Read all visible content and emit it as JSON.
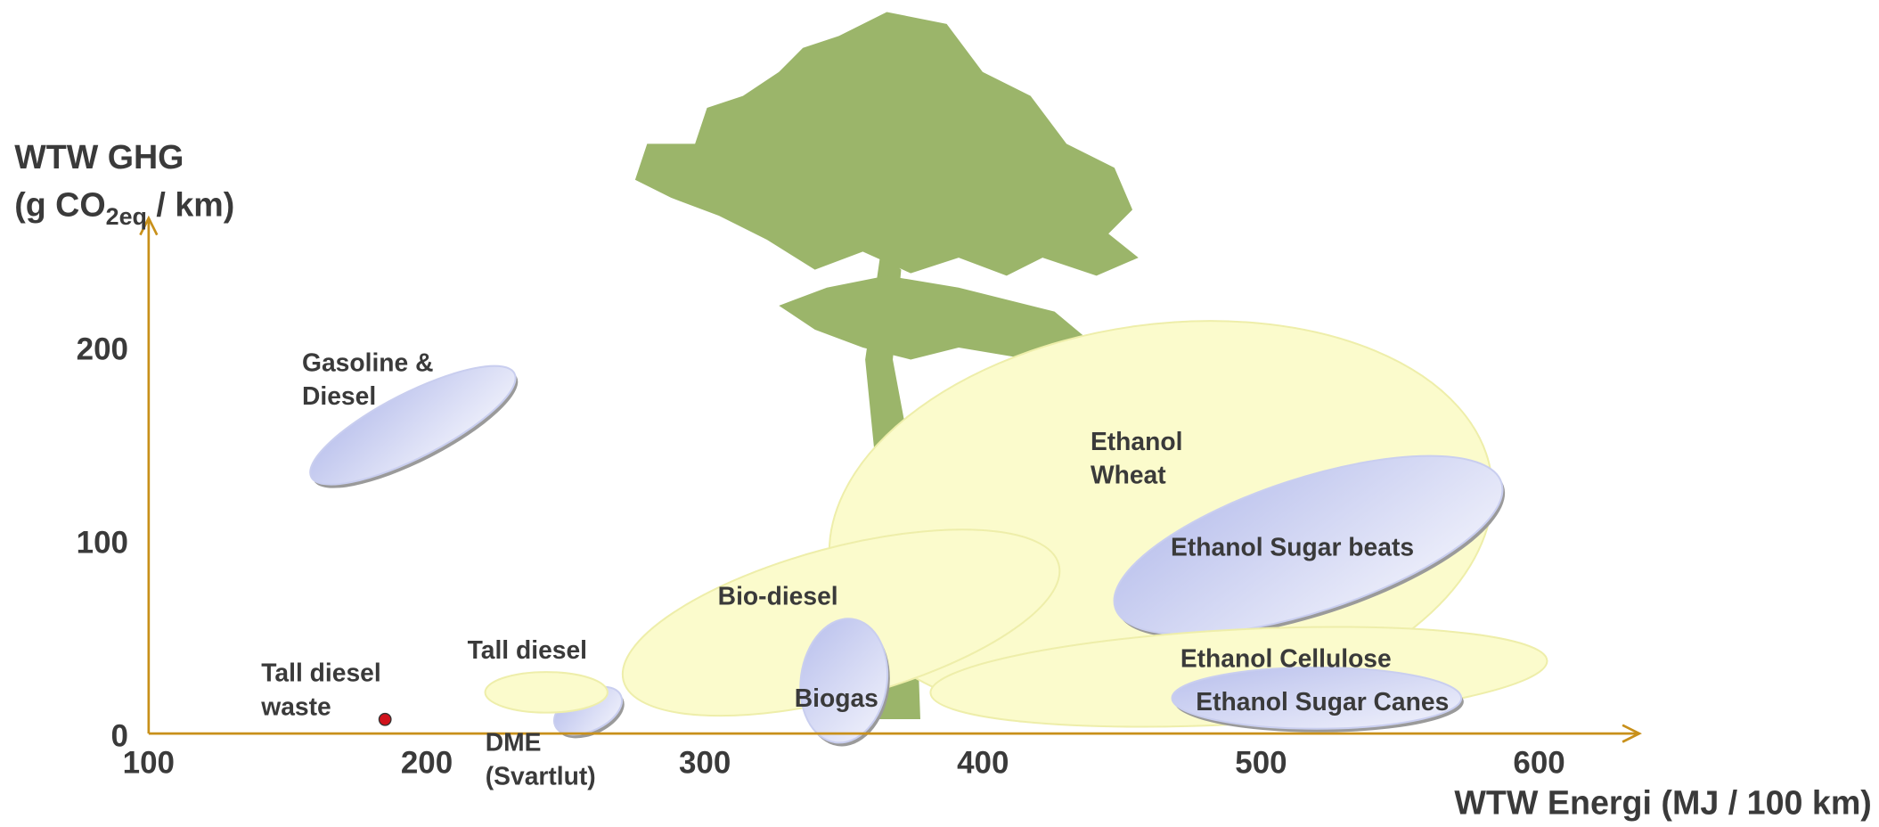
{
  "chart_data": {
    "type": "ellipse",
    "y_label_line1": "WTW GHG",
    "y_label_line2": {
      "before": "(g CO",
      "subscript": "2eq",
      "after": " / km)"
    },
    "x_label": "WTW Energi (MJ / 100 km)",
    "xlim": [
      100,
      636
    ],
    "ylim": [
      0,
      270
    ],
    "xticks": [
      100,
      200,
      300,
      400,
      500,
      600
    ],
    "yticks": [
      0,
      100,
      200
    ],
    "axis_color": "#c8901a",
    "ellipses": [
      {
        "label": [
          "Ethanol",
          "Wheat"
        ],
        "x": 464,
        "y": 113,
        "rx": 120,
        "ry": 71,
        "angle": -8,
        "color": "#fbfbcc"
      },
      {
        "label": [
          "Ethanol Sugar beats"
        ],
        "x": 517,
        "y": 101,
        "rx": 73,
        "ry": 24,
        "angle": -18,
        "color": "#c9ceef"
      },
      {
        "label": [
          "Bio-diesel"
        ],
        "x": 349,
        "y": 61,
        "rx": 81,
        "ry": 27,
        "angle": -15,
        "color": "#fbfbcc"
      },
      {
        "label": [
          "Ethanol Cellulose"
        ],
        "x": 492,
        "y": 33,
        "rx": 111,
        "ry": 17,
        "angle": -3,
        "color": "#fbfbcc"
      },
      {
        "label": [
          "Ethanol Sugar Canes"
        ],
        "x": 520,
        "y": 22,
        "rx": 52,
        "ry": 11,
        "angle": 0,
        "color": "#c9ceef"
      },
      {
        "label": [
          "Biogas"
        ],
        "x": 350,
        "y": 31,
        "rx": 15.5,
        "ry": 22.4,
        "angle": 8,
        "color": "#c9ceef"
      },
      {
        "label": [
          "DME",
          "(Svartlut)"
        ],
        "x": 258,
        "y": 15.5,
        "rx": 13,
        "ry": 7.3,
        "angle": -25,
        "color": "#c9ceef"
      },
      {
        "label": [
          "Tall diesel"
        ],
        "x": 243,
        "y": 25,
        "rx": 22,
        "ry": 7.3,
        "angle": 0,
        "color": "#fbfbcc"
      },
      {
        "label": [
          "Gasoline &",
          "Diesel"
        ],
        "x": 195,
        "y": 163,
        "rx": 41,
        "ry": 11.6,
        "angle": -27,
        "color": "#c9ceef"
      }
    ],
    "points": [
      {
        "label": [
          "Tall diesel",
          "waste"
        ],
        "x": 185,
        "y": 11,
        "color": "#d0121b"
      }
    ]
  }
}
